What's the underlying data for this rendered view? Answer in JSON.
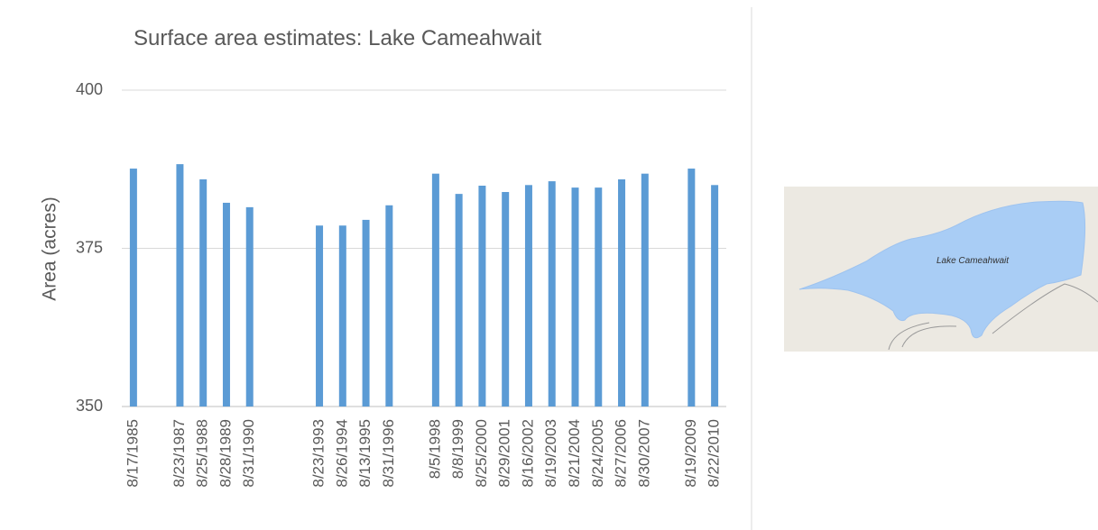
{
  "chart_data": {
    "type": "bar",
    "title": "Surface area estimates: Lake Cameahwait",
    "y_label": "Area (acres)",
    "categories": [
      "8/17/1985",
      null,
      "8/23/1987",
      "8/25/1988",
      "8/28/1989",
      "8/31/1990",
      null,
      null,
      "8/23/1993",
      "8/26/1994",
      "8/13/1995",
      "8/31/1996",
      null,
      "8/5/1998",
      "8/8/1999",
      "8/25/2000",
      "8/29/2001",
      "8/16/2002",
      "8/19/2003",
      "8/21/2004",
      "8/24/2005",
      "8/27/2006",
      "8/30/2007",
      null,
      "8/19/2009",
      "8/22/2010"
    ],
    "values": [
      387.6,
      null,
      388.3,
      385.9,
      382.2,
      381.5,
      null,
      null,
      378.6,
      378.6,
      379.5,
      381.8,
      null,
      386.8,
      383.6,
      384.9,
      383.9,
      385.0,
      385.6,
      384.6,
      384.6,
      385.9,
      386.8,
      null,
      387.6,
      385.0
    ],
    "color": "#5b9bd5",
    "ylim": [
      350,
      400
    ],
    "yticks": [
      350,
      375,
      400
    ],
    "grid": true
  },
  "map": {
    "label": "Lake Cameahwait"
  }
}
